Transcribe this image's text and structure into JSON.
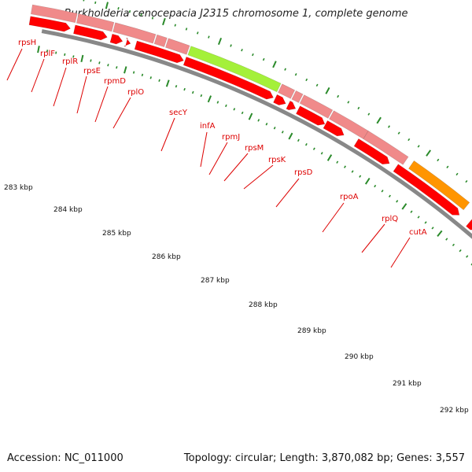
{
  "title": "Burkholderia cenocepacia J2315 chromosome 1, complete genome",
  "footer": {
    "accession": "Accession: NC_011000",
    "summary": "Topology: circular; Length: 3,870,082 bp; Genes: 3,557"
  },
  "colors": {
    "ribosomal": "#f08a8a",
    "cds": "#ff0000",
    "secY": "#a4f03a",
    "rpoA": "#ff9500",
    "navy": "#484890",
    "cyan": "#18f0f0",
    "khaki": "#c2b47a",
    "blue": "#1414ff",
    "backbone": "#888888",
    "tick": "#2a8a2a"
  },
  "gene_labels": [
    "rpsH",
    "rplF",
    "rplR",
    "rpsE",
    "rpmD",
    "rplO",
    "secY",
    "infA",
    "rpmJ",
    "rpsM",
    "rpsK",
    "rpsD",
    "rpoA",
    "rplQ",
    "cutA"
  ],
  "kbp_labels": [
    "283 kbp",
    "284 kbp",
    "285 kbp",
    "286 kbp",
    "287 kbp",
    "288 kbp",
    "289 kbp",
    "290 kbp",
    "291 kbp",
    "292 kbp"
  ]
}
